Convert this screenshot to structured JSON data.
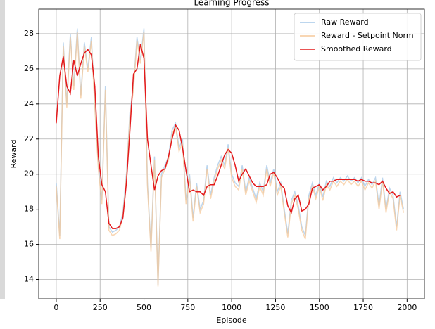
{
  "chart_data": {
    "type": "line",
    "title": "Learning Progress",
    "x_label": "Episode",
    "y_label": "Reward",
    "x": [
      0,
      20,
      40,
      60,
      80,
      100,
      120,
      140,
      160,
      180,
      200,
      220,
      240,
      260,
      280,
      300,
      320,
      340,
      360,
      380,
      400,
      420,
      440,
      460,
      480,
      500,
      520,
      540,
      560,
      580,
      600,
      620,
      640,
      660,
      680,
      700,
      720,
      740,
      760,
      780,
      800,
      820,
      840,
      860,
      880,
      900,
      920,
      940,
      960,
      980,
      1000,
      1020,
      1040,
      1060,
      1080,
      1100,
      1120,
      1140,
      1160,
      1180,
      1200,
      1220,
      1240,
      1260,
      1280,
      1300,
      1320,
      1340,
      1360,
      1380,
      1400,
      1420,
      1440,
      1460,
      1480,
      1500,
      1520,
      1540,
      1560,
      1580,
      1600,
      1620,
      1640,
      1660,
      1680,
      1700,
      1720,
      1740,
      1760,
      1780,
      1800,
      1820,
      1840,
      1860,
      1880,
      1900,
      1920,
      1940,
      1960,
      1980
    ],
    "series": [
      {
        "name": "Raw Reward",
        "color": "#a6c8e8",
        "values": [
          19.5,
          16.5,
          27.5,
          24.0,
          28.0,
          25.0,
          28.3,
          24.5,
          27.5,
          26.0,
          27.8,
          24.0,
          20.5,
          18.5,
          25.0,
          17.0,
          16.7,
          16.8,
          17.0,
          17.8,
          20.0,
          23.5,
          25.0,
          27.8,
          26.5,
          28.3,
          19.5,
          15.8,
          21.0,
          13.7,
          20.0,
          20.5,
          21.0,
          22.5,
          22.9,
          21.5,
          22.0,
          18.5,
          20.0,
          17.5,
          19.5,
          18.0,
          18.5,
          20.5,
          18.8,
          19.8,
          20.5,
          21.0,
          20.5,
          21.7,
          20.0,
          19.5,
          19.3,
          20.5,
          19.0,
          19.8,
          19.2,
          18.6,
          19.5,
          19.0,
          20.5,
          19.5,
          20.3,
          19.0,
          19.5,
          18.0,
          16.6,
          18.5,
          19.0,
          18.2,
          17.0,
          16.5,
          18.8,
          19.5,
          18.8,
          19.5,
          18.7,
          19.6,
          19.3,
          19.8,
          19.5,
          19.8,
          19.6,
          19.9,
          19.6,
          19.8,
          19.5,
          19.8,
          19.3,
          19.7,
          19.4,
          19.8,
          18.2,
          19.8,
          18.0,
          19.2,
          18.8,
          17.0,
          19.0,
          18.0
        ]
      },
      {
        "name": "Reward - Setpoint Norm",
        "color": "#f5c89a",
        "values": [
          19.3,
          16.3,
          27.3,
          23.8,
          27.8,
          24.8,
          28.1,
          24.3,
          27.3,
          25.8,
          27.6,
          23.8,
          20.3,
          18.3,
          24.8,
          16.8,
          16.5,
          16.6,
          16.8,
          17.6,
          19.8,
          23.3,
          24.8,
          27.6,
          26.3,
          28.1,
          19.3,
          15.6,
          20.8,
          13.6,
          19.8,
          20.3,
          20.8,
          22.3,
          22.7,
          21.3,
          21.8,
          18.3,
          19.8,
          17.3,
          19.3,
          17.8,
          18.3,
          20.3,
          18.6,
          19.6,
          20.3,
          20.8,
          20.3,
          21.5,
          19.8,
          19.3,
          19.1,
          20.3,
          18.8,
          19.6,
          19.0,
          18.4,
          19.3,
          18.8,
          20.3,
          19.3,
          20.1,
          18.8,
          19.3,
          17.8,
          16.4,
          18.3,
          18.8,
          18.0,
          16.8,
          16.3,
          18.6,
          19.3,
          18.6,
          19.3,
          18.5,
          19.4,
          19.1,
          19.6,
          19.3,
          19.6,
          19.4,
          19.7,
          19.4,
          19.6,
          19.3,
          19.6,
          19.1,
          19.5,
          19.2,
          19.6,
          18.0,
          19.6,
          17.8,
          19.0,
          18.6,
          16.8,
          18.8,
          17.8
        ]
      },
      {
        "name": "Smoothed Reward",
        "color": "#e41a1c",
        "values": [
          22.9,
          25.6,
          26.7,
          25.0,
          24.6,
          26.5,
          25.6,
          26.3,
          26.9,
          27.1,
          26.8,
          25.0,
          21.0,
          19.4,
          19.0,
          17.2,
          16.9,
          16.9,
          17.0,
          17.5,
          19.5,
          22.5,
          25.7,
          26.0,
          27.4,
          26.6,
          22.0,
          20.5,
          19.1,
          19.9,
          20.2,
          20.3,
          21.0,
          22.0,
          22.8,
          22.5,
          21.5,
          20.2,
          19.0,
          19.1,
          19.0,
          19.0,
          18.8,
          19.3,
          19.4,
          19.4,
          19.9,
          20.5,
          21.1,
          21.4,
          21.2,
          20.5,
          19.6,
          20.0,
          20.3,
          19.9,
          19.5,
          19.3,
          19.3,
          19.3,
          19.4,
          20.0,
          20.1,
          19.8,
          19.4,
          19.2,
          18.2,
          17.8,
          18.6,
          18.8,
          17.9,
          18.0,
          18.3,
          19.2,
          19.3,
          19.4,
          19.1,
          19.3,
          19.6,
          19.6,
          19.7,
          19.7,
          19.7,
          19.7,
          19.7,
          19.7,
          19.6,
          19.7,
          19.6,
          19.6,
          19.5,
          19.5,
          19.4,
          19.6,
          19.2,
          18.9,
          19.0,
          18.7,
          18.8,
          null
        ]
      }
    ],
    "xlim": [
      -100,
      2099
    ],
    "ylim": [
      12.9,
      29.4
    ],
    "xticks": [
      0,
      250,
      500,
      750,
      1000,
      1250,
      1500,
      1750,
      2000
    ],
    "yticks": [
      14,
      16,
      18,
      20,
      22,
      24,
      26,
      28
    ],
    "grid": true,
    "legend": "upper-right"
  }
}
